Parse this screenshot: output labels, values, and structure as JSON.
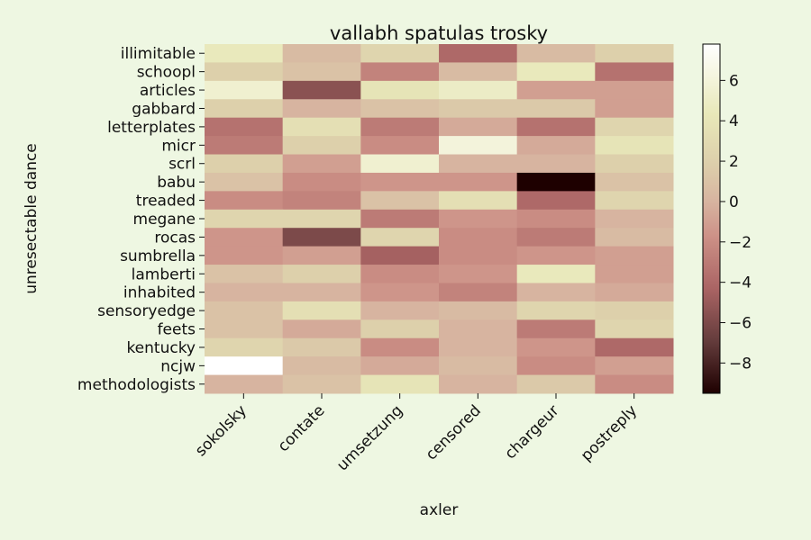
{
  "chart_data": {
    "type": "heatmap",
    "title": "vallabh spatulas trosky",
    "xlabel": "axler",
    "ylabel": "unresectable dance",
    "x_categories": [
      "sokolsky",
      "contate",
      "umsetzung",
      "censored",
      "chargeur",
      "postreply"
    ],
    "y_categories": [
      "illimitable",
      "schoopl",
      "articles",
      "gabbard",
      "letterplates",
      "micr",
      "scrl",
      "babu",
      "treaded",
      "megane",
      "rocas",
      "sumbrella",
      "lamberti",
      "inhabited",
      "sensoryedge",
      "feets",
      "kentucky",
      "ncjw",
      "methodologists"
    ],
    "values": [
      [
        4.5,
        0.5,
        2.5,
        -4.0,
        0.5,
        2.0
      ],
      [
        2.0,
        1.0,
        -2.5,
        0.5,
        4.5,
        -3.5
      ],
      [
        5.5,
        -5.5,
        4.0,
        5.0,
        -1.0,
        -1.0
      ],
      [
        2.0,
        0.0,
        1.0,
        1.5,
        1.5,
        -1.0
      ],
      [
        -3.5,
        3.5,
        -3.0,
        -0.5,
        -3.5,
        2.5
      ],
      [
        -3.0,
        2.0,
        -2.0,
        6.0,
        -0.5,
        4.0
      ],
      [
        2.0,
        -1.0,
        5.5,
        0.0,
        0.0,
        2.0
      ],
      [
        1.0,
        -2.0,
        -1.5,
        -1.5,
        -9.5,
        1.0
      ],
      [
        -2.0,
        -2.5,
        1.0,
        3.5,
        -4.0,
        2.5
      ],
      [
        2.5,
        2.5,
        -3.0,
        -1.5,
        -2.0,
        0.0
      ],
      [
        -1.5,
        -6.0,
        2.5,
        -2.0,
        -3.0,
        0.5
      ],
      [
        -1.5,
        -1.0,
        -4.5,
        -2.0,
        -1.5,
        -1.0
      ],
      [
        1.0,
        2.0,
        -2.0,
        -1.5,
        4.5,
        -1.0
      ],
      [
        0.0,
        0.0,
        -1.5,
        -2.5,
        0.0,
        -0.5
      ],
      [
        1.0,
        3.5,
        0.0,
        0.5,
        2.5,
        2.0
      ],
      [
        1.0,
        -0.5,
        2.0,
        0.0,
        -3.0,
        2.5
      ],
      [
        2.5,
        1.5,
        -2.0,
        0.0,
        -1.5,
        -4.0
      ],
      [
        7.8,
        0.5,
        -0.5,
        0.5,
        -2.0,
        -1.0
      ],
      [
        0.0,
        1.0,
        4.0,
        0.0,
        1.5,
        -2.0
      ]
    ],
    "colorbar": {
      "ticks": [
        -8,
        -6,
        -4,
        -2,
        0,
        2,
        4,
        6
      ],
      "tick_labels": [
        "−8",
        "−6",
        "−4",
        "−2",
        "0",
        "2",
        "4",
        "6"
      ],
      "range": [
        -9.5,
        7.8
      ],
      "colormap": "pink"
    },
    "grid": false
  }
}
